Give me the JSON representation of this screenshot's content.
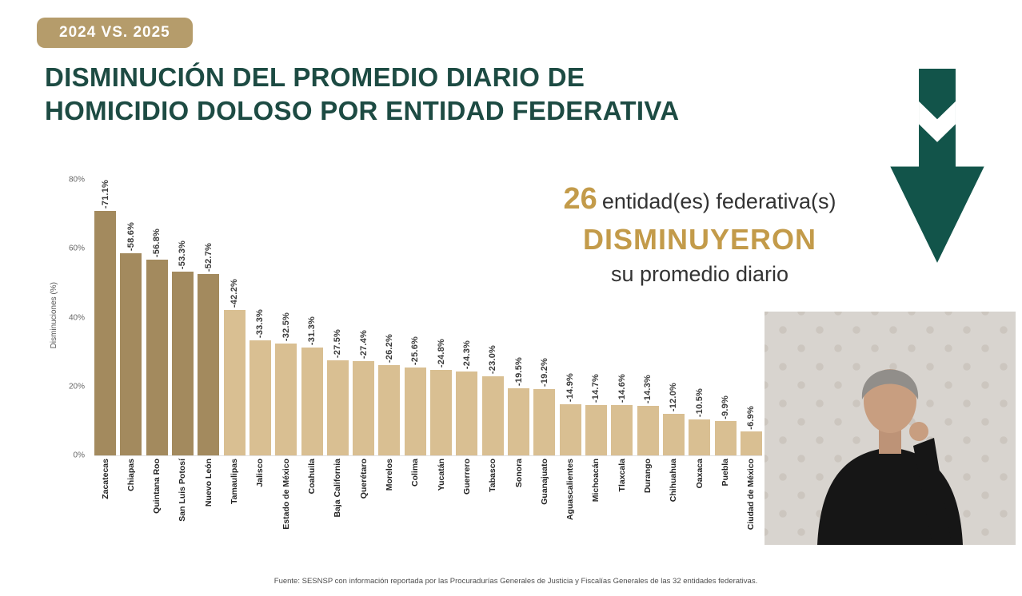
{
  "badge": {
    "label": "2024 VS. 2025"
  },
  "title": {
    "line1": "DISMINUCIÓN DEL PROMEDIO DIARIO DE",
    "line2": "HOMICIDIO DOLOSO POR ENTIDAD FEDERATIVA"
  },
  "highlight": {
    "count": "26",
    "entities_text": "entidad(es) federativa(s)",
    "action": "DISMINUYERON",
    "subtitle": "su promedio diario"
  },
  "icons": {
    "arrow": "double-down-arrow-icon"
  },
  "chart_data": {
    "type": "bar",
    "title": "",
    "xlabel": "",
    "ylabel": "Disminuciones (%)",
    "ylim": [
      0,
      80
    ],
    "grid": false,
    "legend": false,
    "yticks": [
      0,
      20,
      40,
      60,
      80
    ],
    "ytick_labels": [
      "0%",
      "20%",
      "40%",
      "60%",
      "80%"
    ],
    "categories": [
      "Zacatecas",
      "Chiapas",
      "Quintana Roo",
      "San Luis Potosí",
      "Nuevo León",
      "Tamaulipas",
      "Jalisco",
      "Estado de México",
      "Coahuila",
      "Baja California",
      "Querétaro",
      "Morelos",
      "Colima",
      "Yucatán",
      "Guerrero",
      "Tabasco",
      "Sonora",
      "Guanajuato",
      "Aguascalientes",
      "Michoacán",
      "Tlaxcala",
      "Durango",
      "Chihuahua",
      "Oaxaca",
      "Puebla",
      "Ciudad de México"
    ],
    "values": [
      71.1,
      58.6,
      56.8,
      53.3,
      52.7,
      42.2,
      33.3,
      32.5,
      31.3,
      27.5,
      27.4,
      26.2,
      25.6,
      24.8,
      24.3,
      23.0,
      19.5,
      19.2,
      14.9,
      14.7,
      14.6,
      14.3,
      12.0,
      10.5,
      9.9,
      6.9
    ],
    "bar_labels": [
      "-71.1%",
      "-58.6%",
      "-56.8%",
      "-53.3%",
      "-52.7%",
      "-42.2%",
      "-33.3%",
      "-32.5%",
      "-31.3%",
      "-27.5%",
      "-27.4%",
      "-26.2%",
      "-25.6%",
      "-24.8%",
      "-24.3%",
      "-23.0%",
      "-19.5%",
      "-19.2%",
      "-14.9%",
      "-14.7%",
      "-14.6%",
      "-14.3%",
      "-12.0%",
      "-10.5%",
      "-9.9%",
      "-6.9%"
    ],
    "dark_bar_count": 5,
    "colors": {
      "dark": "#a38a5e",
      "light": "#d9bf92"
    }
  },
  "colors": {
    "title": "#1d4b43",
    "gold": "#c39b4a",
    "badge": "#b59c6b",
    "arrow": "#12544a"
  },
  "footer": {
    "source": "Fuente: SESNSP con información reportada por las Procuradurías Generales de Justicia y Fiscalías Generales de las 32 entidades federativas."
  }
}
